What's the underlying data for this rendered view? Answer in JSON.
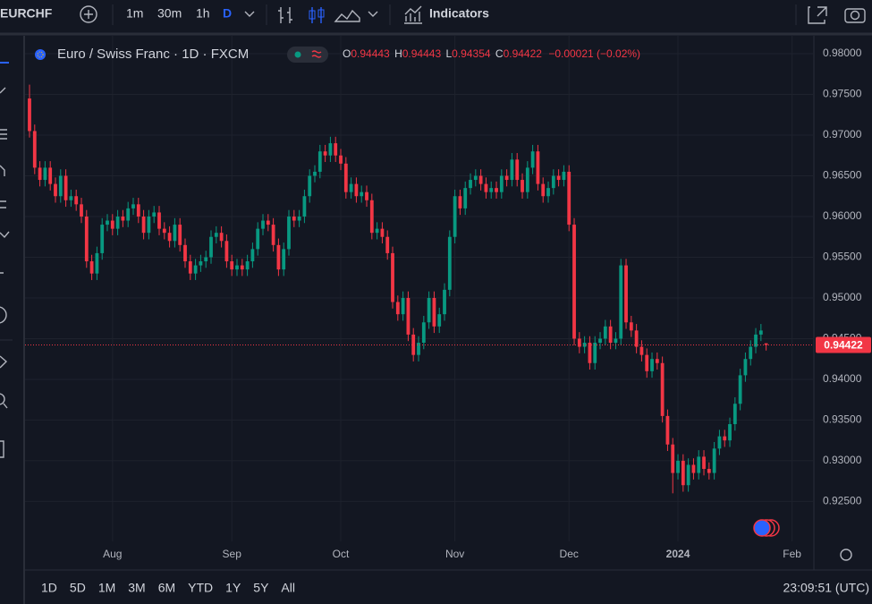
{
  "ui": {
    "symbol": "EURCHF",
    "intervals": [
      "1m",
      "30m",
      "1h",
      "D"
    ],
    "indicators": "Indicators",
    "ranges": [
      "1D",
      "5D",
      "1M",
      "3M",
      "6M",
      "YTD",
      "1Y",
      "5Y",
      "All"
    ],
    "clock": "23:09:51 (UTC)"
  },
  "chart_data": {
    "type": "candlestick",
    "title": "Euro / Swiss Franc · 1D · FXCM",
    "ohlc_labels": [
      "O",
      "H",
      "L",
      "C"
    ],
    "change": "−0.00021 (−0.02%)",
    "up_color": "#089981",
    "down_color": "#f23645",
    "grid": true,
    "last_price_line": true,
    "ylim": [
      0.9201,
      0.9822
    ],
    "yticks": [
      {
        "value": 0.925,
        "label": "0.92500"
      },
      {
        "value": 0.93,
        "label": "0.93000"
      },
      {
        "value": 0.935,
        "label": "0.93500"
      },
      {
        "value": 0.94,
        "label": "0.94000"
      },
      {
        "value": 0.945,
        "label": "0.94500"
      },
      {
        "value": 0.95,
        "label": "0.95000"
      },
      {
        "value": 0.955,
        "label": "0.95500"
      },
      {
        "value": 0.96,
        "label": "0.96000"
      },
      {
        "value": 0.965,
        "label": "0.96500"
      },
      {
        "value": 0.97,
        "label": "0.97000"
      },
      {
        "value": 0.975,
        "label": "0.97500"
      },
      {
        "value": 0.98,
        "label": "0.98000"
      }
    ],
    "xlim": [
      -0.86,
      151.2
    ],
    "xticks": [
      {
        "value": 16,
        "label": "Aug"
      },
      {
        "value": 39,
        "label": "Sep"
      },
      {
        "value": 60,
        "label": "Oct"
      },
      {
        "value": 82,
        "label": "Nov"
      },
      {
        "value": 104,
        "label": "Dec"
      },
      {
        "value": 125,
        "label": "2024"
      },
      {
        "value": 147,
        "label": "Feb"
      }
    ],
    "ohlc": [
      [
        0.9745,
        0.9762,
        0.9697,
        0.9705
      ],
      [
        0.9705,
        0.9713,
        0.9652,
        0.966
      ],
      [
        0.966,
        0.9668,
        0.9637,
        0.9645
      ],
      [
        0.9645,
        0.9668,
        0.9637,
        0.966
      ],
      [
        0.966,
        0.9668,
        0.9632,
        0.964
      ],
      [
        0.964,
        0.9648,
        0.9617,
        0.9625
      ],
      [
        0.9625,
        0.9658,
        0.9617,
        0.965
      ],
      [
        0.965,
        0.9658,
        0.9612,
        0.962
      ],
      [
        0.962,
        0.9633,
        0.9612,
        0.9625
      ],
      [
        0.9625,
        0.9633,
        0.9607,
        0.9615
      ],
      [
        0.9615,
        0.9623,
        0.9592,
        0.96
      ],
      [
        0.96,
        0.9608,
        0.9537,
        0.9545
      ],
      [
        0.9545,
        0.9553,
        0.9522,
        0.953
      ],
      [
        0.953,
        0.9563,
        0.9522,
        0.9555
      ],
      [
        0.9555,
        0.9598,
        0.9547,
        0.959
      ],
      [
        0.959,
        0.9603,
        0.9582,
        0.9595
      ],
      [
        0.9595,
        0.9603,
        0.9577,
        0.9585
      ],
      [
        0.9585,
        0.9608,
        0.9577,
        0.96
      ],
      [
        0.96,
        0.9608,
        0.9587,
        0.9595
      ],
      [
        0.9595,
        0.9618,
        0.9587,
        0.961
      ],
      [
        0.961,
        0.9623,
        0.9602,
        0.9615
      ],
      [
        0.9615,
        0.9623,
        0.9592,
        0.96
      ],
      [
        0.96,
        0.9608,
        0.9572,
        0.958
      ],
      [
        0.958,
        0.9608,
        0.9572,
        0.96
      ],
      [
        0.96,
        0.9613,
        0.9592,
        0.9605
      ],
      [
        0.9605,
        0.9613,
        0.9577,
        0.9585
      ],
      [
        0.9585,
        0.9593,
        0.9572,
        0.958
      ],
      [
        0.958,
        0.9588,
        0.9562,
        0.957
      ],
      [
        0.957,
        0.9598,
        0.9562,
        0.959
      ],
      [
        0.959,
        0.9598,
        0.9557,
        0.9565
      ],
      [
        0.9565,
        0.9573,
        0.9537,
        0.9545
      ],
      [
        0.9545,
        0.9553,
        0.9522,
        0.953
      ],
      [
        0.953,
        0.9548,
        0.9522,
        0.954
      ],
      [
        0.954,
        0.9553,
        0.9532,
        0.9545
      ],
      [
        0.9545,
        0.9558,
        0.9537,
        0.955
      ],
      [
        0.955,
        0.9583,
        0.9542,
        0.9575
      ],
      [
        0.9575,
        0.9588,
        0.9567,
        0.958
      ],
      [
        0.958,
        0.9588,
        0.9562,
        0.957
      ],
      [
        0.957,
        0.9578,
        0.9537,
        0.9545
      ],
      [
        0.9545,
        0.9553,
        0.9527,
        0.9535
      ],
      [
        0.9535,
        0.9548,
        0.9527,
        0.954
      ],
      [
        0.954,
        0.9548,
        0.9527,
        0.9535
      ],
      [
        0.9535,
        0.9553,
        0.9527,
        0.9545
      ],
      [
        0.9545,
        0.9568,
        0.9537,
        0.956
      ],
      [
        0.956,
        0.9593,
        0.9552,
        0.9585
      ],
      [
        0.9585,
        0.9603,
        0.9577,
        0.9595
      ],
      [
        0.9595,
        0.9603,
        0.9582,
        0.959
      ],
      [
        0.959,
        0.9598,
        0.9557,
        0.9565
      ],
      [
        0.9565,
        0.9573,
        0.9527,
        0.9535
      ],
      [
        0.9535,
        0.9568,
        0.9527,
        0.956
      ],
      [
        0.956,
        0.9608,
        0.9552,
        0.96
      ],
      [
        0.96,
        0.9608,
        0.9587,
        0.9595
      ],
      [
        0.9595,
        0.9608,
        0.9587,
        0.96
      ],
      [
        0.96,
        0.9633,
        0.9592,
        0.9625
      ],
      [
        0.9625,
        0.9658,
        0.9617,
        0.965
      ],
      [
        0.965,
        0.9663,
        0.9642,
        0.9655
      ],
      [
        0.9655,
        0.9688,
        0.9647,
        0.968
      ],
      [
        0.968,
        0.9688,
        0.9667,
        0.9675
      ],
      [
        0.9675,
        0.9698,
        0.9667,
        0.969
      ],
      [
        0.969,
        0.9698,
        0.9667,
        0.9675
      ],
      [
        0.9675,
        0.9683,
        0.9657,
        0.9665
      ],
      [
        0.9665,
        0.9673,
        0.9622,
        0.963
      ],
      [
        0.963,
        0.9648,
        0.9622,
        0.964
      ],
      [
        0.964,
        0.9648,
        0.9617,
        0.9625
      ],
      [
        0.9625,
        0.9638,
        0.9617,
        0.963
      ],
      [
        0.963,
        0.9638,
        0.9612,
        0.962
      ],
      [
        0.962,
        0.9628,
        0.9572,
        0.958
      ],
      [
        0.958,
        0.9593,
        0.9572,
        0.9585
      ],
      [
        0.9585,
        0.9593,
        0.9567,
        0.9575
      ],
      [
        0.9575,
        0.9583,
        0.9547,
        0.9555
      ],
      [
        0.9555,
        0.9563,
        0.9487,
        0.9495
      ],
      [
        0.9495,
        0.9503,
        0.9472,
        0.948
      ],
      [
        0.948,
        0.9508,
        0.9472,
        0.95
      ],
      [
        0.95,
        0.9508,
        0.9447,
        0.9455
      ],
      [
        0.9455,
        0.9463,
        0.9422,
        0.943
      ],
      [
        0.943,
        0.9453,
        0.9422,
        0.9445
      ],
      [
        0.9445,
        0.9478,
        0.9437,
        0.947
      ],
      [
        0.947,
        0.9508,
        0.9462,
        0.95
      ],
      [
        0.95,
        0.9508,
        0.9457,
        0.9465
      ],
      [
        0.9465,
        0.9488,
        0.9457,
        0.948
      ],
      [
        0.948,
        0.9518,
        0.9472,
        0.951
      ],
      [
        0.951,
        0.9583,
        0.9502,
        0.9575
      ],
      [
        0.9575,
        0.9633,
        0.9567,
        0.9625
      ],
      [
        0.9625,
        0.9633,
        0.9602,
        0.961
      ],
      [
        0.961,
        0.9643,
        0.9602,
        0.9635
      ],
      [
        0.9635,
        0.9653,
        0.9627,
        0.9645
      ],
      [
        0.9645,
        0.9658,
        0.9637,
        0.965
      ],
      [
        0.965,
        0.9658,
        0.9632,
        0.964
      ],
      [
        0.964,
        0.9648,
        0.9622,
        0.963
      ],
      [
        0.963,
        0.9643,
        0.9622,
        0.9635
      ],
      [
        0.9635,
        0.9643,
        0.9622,
        0.963
      ],
      [
        0.963,
        0.9658,
        0.9622,
        0.965
      ],
      [
        0.965,
        0.9658,
        0.9637,
        0.9645
      ],
      [
        0.9645,
        0.9678,
        0.9637,
        0.967
      ],
      [
        0.967,
        0.9678,
        0.9637,
        0.9645
      ],
      [
        0.9645,
        0.9653,
        0.9622,
        0.963
      ],
      [
        0.963,
        0.9668,
        0.9622,
        0.966
      ],
      [
        0.966,
        0.9688,
        0.9652,
        0.968
      ],
      [
        0.968,
        0.9688,
        0.9632,
        0.964
      ],
      [
        0.964,
        0.9648,
        0.9617,
        0.9625
      ],
      [
        0.9625,
        0.9643,
        0.9617,
        0.9635
      ],
      [
        0.9635,
        0.9658,
        0.9627,
        0.965
      ],
      [
        0.965,
        0.9658,
        0.9637,
        0.9645
      ],
      [
        0.9645,
        0.9663,
        0.9637,
        0.9655
      ],
      [
        0.9655,
        0.9663,
        0.9582,
        0.959
      ],
      [
        0.959,
        0.9598,
        0.9442,
        0.945
      ],
      [
        0.945,
        0.9458,
        0.9432,
        0.944
      ],
      [
        0.944,
        0.9453,
        0.9432,
        0.9445
      ],
      [
        0.9445,
        0.9453,
        0.9412,
        0.942
      ],
      [
        0.942,
        0.9453,
        0.9412,
        0.9445
      ],
      [
        0.9445,
        0.9458,
        0.9437,
        0.945
      ],
      [
        0.945,
        0.9473,
        0.9442,
        0.9465
      ],
      [
        0.9465,
        0.9473,
        0.9437,
        0.9445
      ],
      [
        0.9445,
        0.9458,
        0.9437,
        0.945
      ],
      [
        0.945,
        0.9548,
        0.9442,
        0.954
      ],
      [
        0.954,
        0.9548,
        0.9462,
        0.947
      ],
      [
        0.947,
        0.9478,
        0.9452,
        0.946
      ],
      [
        0.946,
        0.9468,
        0.9432,
        0.944
      ],
      [
        0.944,
        0.9448,
        0.9422,
        0.943
      ],
      [
        0.943,
        0.9438,
        0.9402,
        0.941
      ],
      [
        0.941,
        0.9433,
        0.9402,
        0.9425
      ],
      [
        0.9425,
        0.9433,
        0.9412,
        0.942
      ],
      [
        0.942,
        0.9428,
        0.9347,
        0.9355
      ],
      [
        0.9355,
        0.9363,
        0.9312,
        0.932
      ],
      [
        0.932,
        0.9328,
        0.926,
        0.9285
      ],
      [
        0.9285,
        0.9308,
        0.9277,
        0.93
      ],
      [
        0.93,
        0.9308,
        0.9262,
        0.927
      ],
      [
        0.927,
        0.9303,
        0.9262,
        0.9295
      ],
      [
        0.9295,
        0.9303,
        0.9277,
        0.9285
      ],
      [
        0.9285,
        0.9313,
        0.9277,
        0.9305
      ],
      [
        0.9305,
        0.9313,
        0.9282,
        0.929
      ],
      [
        0.929,
        0.9298,
        0.9277,
        0.9285
      ],
      [
        0.9285,
        0.9323,
        0.9277,
        0.9315
      ],
      [
        0.9315,
        0.9338,
        0.9307,
        0.933
      ],
      [
        0.933,
        0.9338,
        0.9317,
        0.9325
      ],
      [
        0.9325,
        0.9353,
        0.9317,
        0.9345
      ],
      [
        0.9345,
        0.9378,
        0.9337,
        0.937
      ],
      [
        0.937,
        0.9413,
        0.9362,
        0.9405
      ],
      [
        0.9405,
        0.9433,
        0.9397,
        0.9425
      ],
      [
        0.9425,
        0.9448,
        0.9417,
        0.944
      ],
      [
        0.944,
        0.9463,
        0.9432,
        0.9455
      ],
      [
        0.9455,
        0.9468,
        0.9447,
        0.946
      ],
      [
        0.94443,
        0.94443,
        0.94354,
        0.94422
      ]
    ]
  }
}
